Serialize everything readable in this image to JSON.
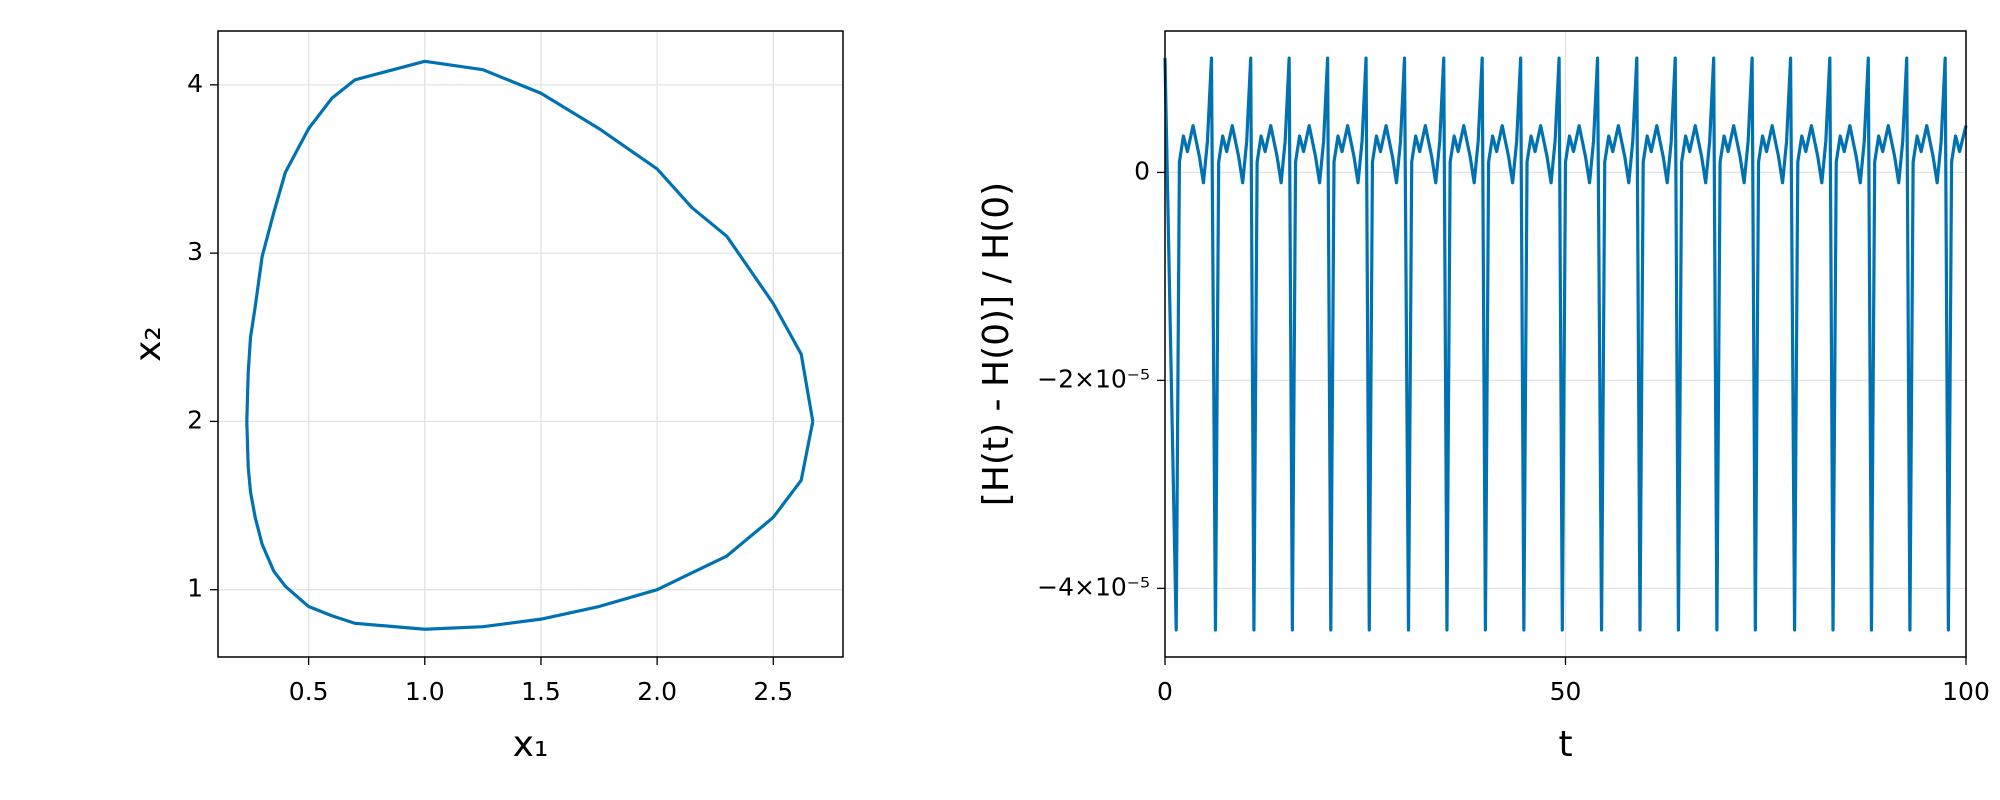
{
  "chart_data": [
    {
      "type": "line",
      "xlabel": "x₁",
      "ylabel": "x₂",
      "color": "#0072b2",
      "grid": true,
      "xlim": [
        0.11,
        2.8
      ],
      "ylim": [
        0.6,
        4.32
      ],
      "xticks": [
        0.5,
        {
          "value": 1,
          "label": "1.0"
        },
        1.5,
        {
          "value": 2,
          "label": "2.0"
        },
        2.5
      ],
      "yticks": [
        1,
        2,
        3,
        4
      ],
      "x": [
        2.67,
        2.62,
        2.5,
        2.3,
        2.15,
        2.0,
        1.75,
        1.5,
        1.25,
        1.0,
        0.7,
        0.6,
        0.5,
        0.4,
        0.35,
        0.3,
        0.27,
        0.25,
        0.24,
        0.234,
        0.24,
        0.25,
        0.27,
        0.3,
        0.35,
        0.4,
        0.5,
        0.6,
        0.7,
        1.0,
        1.25,
        1.5,
        1.75,
        2.0,
        2.15,
        2.3,
        2.5,
        2.62,
        2.67
      ],
      "values": [
        2.0,
        2.4,
        2.7,
        3.1,
        3.27,
        3.5,
        3.74,
        3.95,
        4.09,
        4.14,
        4.03,
        3.92,
        3.74,
        3.48,
        3.24,
        2.98,
        2.68,
        2.5,
        2.29,
        2.0,
        1.73,
        1.58,
        1.43,
        1.27,
        1.11,
        1.02,
        0.9,
        0.845,
        0.8,
        0.765,
        0.78,
        0.825,
        0.9,
        1.0,
        1.1,
        1.2,
        1.43,
        1.65,
        2.0
      ]
    },
    {
      "type": "line",
      "xlabel": "t",
      "ylabel": "[H(t) - H(0)] / H(0)",
      "color": "#0072b2",
      "grid": true,
      "xlim": [
        0,
        100
      ],
      "ylim": [
        -4.66e-05,
        1.36e-05
      ],
      "xticks": [
        0,
        50,
        100
      ],
      "yticks": [
        0,
        {
          "value": -2e-05,
          "label": "−2×10⁻⁵"
        },
        {
          "value": -4e-05,
          "label": "−4×10⁻⁵"
        }
      ],
      "x": [
        0,
        1.4,
        1.8,
        2.3,
        2.8,
        3.5,
        4.3,
        4.8,
        5.3,
        5.8,
        6.3,
        6.7,
        7.2,
        7.7,
        8.4,
        9.2,
        9.7,
        10.2,
        10.7,
        11.1,
        11.5,
        12.0,
        12.5,
        13.2,
        14.0,
        14.5,
        15.0,
        15.5,
        15.9,
        16.3,
        16.8,
        17.3,
        18.0,
        18.8,
        19.3,
        19.8,
        20.3,
        20.7,
        21.1,
        21.6,
        22.1,
        22.8,
        23.6,
        24.1,
        24.6,
        25.1,
        25.5,
        25.9,
        26.4,
        26.9,
        27.6,
        28.4,
        28.9,
        29.4,
        29.9,
        30.4,
        30.8,
        31.3,
        31.8,
        32.5,
        33.3,
        33.8,
        34.3,
        34.8,
        35.2,
        35.6,
        36.1,
        36.6,
        37.3,
        38.1,
        38.6,
        39.1,
        39.6,
        40.0,
        40.4,
        40.9,
        41.4,
        42.1,
        42.9,
        43.4,
        43.9,
        44.4,
        44.8,
        45.2,
        45.7,
        46.2,
        46.9,
        47.7,
        48.2,
        48.7,
        49.2,
        49.6,
        50.0,
        50.5,
        51.0,
        51.7,
        52.5,
        53.0,
        53.5,
        54.0,
        54.5,
        54.9,
        55.4,
        55.9,
        56.6,
        57.4,
        57.9,
        58.4,
        58.9,
        59.3,
        59.7,
        60.2,
        60.7,
        61.4,
        62.2,
        62.7,
        63.2,
        63.7,
        64.1,
        64.5,
        65.0,
        65.5,
        66.2,
        67.0,
        67.5,
        68.0,
        68.5,
        68.9,
        69.3,
        69.8,
        70.3,
        71.0,
        71.8,
        72.3,
        72.8,
        73.3,
        73.7,
        74.1,
        74.6,
        75.1,
        75.8,
        76.6,
        77.1,
        77.6,
        78.1,
        78.6,
        79.0,
        79.5,
        80.0,
        80.7,
        81.5,
        82.0,
        82.5,
        83.0,
        83.4,
        83.8,
        84.3,
        84.8,
        85.5,
        86.3,
        86.8,
        87.3,
        87.8,
        88.2,
        88.6,
        89.1,
        89.6,
        90.3,
        91.1,
        91.6,
        92.1,
        92.6,
        93.0,
        93.4,
        93.9,
        94.4,
        95.1,
        95.9,
        96.4,
        96.9,
        97.4,
        97.8,
        98.2,
        98.7,
        99.2,
        100
      ],
      "values": [
        1.1e-05,
        -4.4e-05,
        1e-06,
        3.5e-06,
        2e-06,
        4.5e-06,
        1.5e-06,
        -1e-06,
        3e-06,
        1.1e-05,
        -4.4e-05,
        1e-06,
        3.5e-06,
        2e-06,
        4.5e-06,
        1.5e-06,
        -1e-06,
        3e-06,
        1.1e-05,
        -4.4e-05,
        1e-06,
        3.5e-06,
        2e-06,
        4.5e-06,
        1.5e-06,
        -1e-06,
        3e-06,
        1.1e-05,
        -4.4e-05,
        1e-06,
        3.5e-06,
        2e-06,
        4.5e-06,
        1.5e-06,
        -1e-06,
        3e-06,
        1.1e-05,
        -4.4e-05,
        1e-06,
        3.5e-06,
        2e-06,
        4.5e-06,
        1.5e-06,
        -1e-06,
        3e-06,
        1.1e-05,
        -4.4e-05,
        1e-06,
        3.5e-06,
        2e-06,
        4.5e-06,
        1.5e-06,
        -1e-06,
        3e-06,
        1.1e-05,
        -4.4e-05,
        1e-06,
        3.5e-06,
        2e-06,
        4.5e-06,
        1.5e-06,
        -1e-06,
        3e-06,
        1.1e-05,
        -4.4e-05,
        1e-06,
        3.5e-06,
        2e-06,
        4.5e-06,
        1.5e-06,
        -1e-06,
        3e-06,
        1.1e-05,
        -4.4e-05,
        1e-06,
        3.5e-06,
        2e-06,
        4.5e-06,
        1.5e-06,
        -1e-06,
        3e-06,
        1.1e-05,
        -4.4e-05,
        1e-06,
        3.5e-06,
        2e-06,
        4.5e-06,
        1.5e-06,
        -1e-06,
        3e-06,
        1.1e-05,
        -4.4e-05,
        1e-06,
        3.5e-06,
        2e-06,
        4.5e-06,
        1.5e-06,
        -1e-06,
        3e-06,
        1.1e-05,
        -4.4e-05,
        1e-06,
        3.5e-06,
        2e-06,
        4.5e-06,
        1.5e-06,
        -1e-06,
        3e-06,
        1.1e-05,
        -4.4e-05,
        1e-06,
        3.5e-06,
        2e-06,
        4.5e-06,
        1.5e-06,
        -1e-06,
        3e-06,
        1.1e-05,
        -4.4e-05,
        1e-06,
        3.5e-06,
        2e-06,
        4.5e-06,
        1.5e-06,
        -1e-06,
        3e-06,
        1.1e-05,
        -4.4e-05,
        1e-06,
        3.5e-06,
        2e-06,
        4.5e-06,
        1.5e-06,
        -1e-06,
        3e-06,
        1.1e-05,
        -4.4e-05,
        1e-06,
        3.5e-06,
        2e-06,
        4.5e-06,
        1.5e-06,
        -1e-06,
        3e-06,
        1.1e-05,
        -4.4e-05,
        1e-06,
        3.5e-06,
        2e-06,
        4.5e-06,
        1.5e-06,
        -1e-06,
        3e-06,
        1.1e-05,
        -4.4e-05,
        1e-06,
        3.5e-06,
        2e-06,
        4.5e-06,
        1.5e-06,
        -1e-06,
        3e-06,
        1.1e-05,
        -4.4e-05,
        1e-06,
        3.5e-06,
        2e-06,
        4.5e-06,
        1.5e-06,
        -1e-06,
        3e-06,
        1.1e-05,
        -4.4e-05,
        1e-06,
        3.5e-06,
        2e-06,
        4.5e-06,
        1.5e-06,
        -1e-06,
        3e-06,
        1.1e-05,
        -4.4e-05,
        1e-06,
        3.5e-06,
        2e-06,
        4.5e-06
      ]
    }
  ]
}
